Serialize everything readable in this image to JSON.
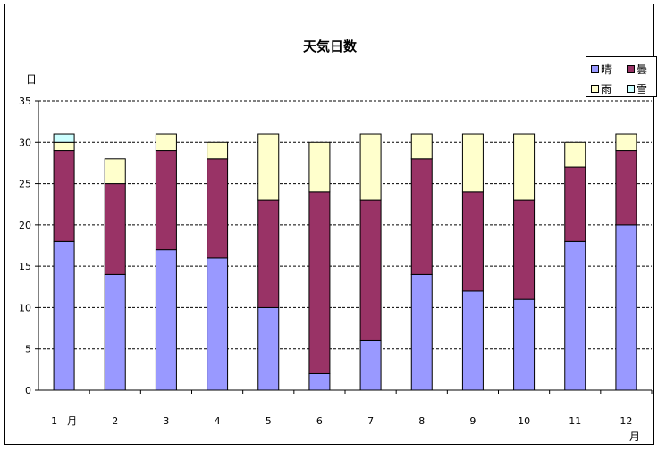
{
  "chart_data": {
    "type": "bar",
    "stacked": true,
    "title": "天気日数",
    "ylabel": "日",
    "xunit": "月",
    "ylim": [
      0,
      35
    ],
    "yticks": [
      0,
      5,
      10,
      15,
      20,
      25,
      30,
      35
    ],
    "grid": "horizontal-dashed",
    "legend_position": "top-right",
    "categories": [
      "1　月",
      "2",
      "3",
      "4",
      "5",
      "6",
      "7",
      "8",
      "9",
      "10",
      "11",
      "12"
    ],
    "series": [
      {
        "name": "晴",
        "color": "#9999ff",
        "values": [
          18,
          14,
          17,
          16,
          10,
          2,
          6,
          14,
          12,
          11,
          18,
          20
        ]
      },
      {
        "name": "曇",
        "color": "#993366",
        "values": [
          11,
          11,
          12,
          12,
          13,
          22,
          17,
          14,
          12,
          12,
          9,
          9
        ]
      },
      {
        "name": "雨",
        "color": "#ffffcc",
        "values": [
          1,
          3,
          2,
          2,
          8,
          6,
          8,
          3,
          7,
          8,
          3,
          2
        ]
      },
      {
        "name": "雪",
        "color": "#ccffff",
        "values": [
          1,
          0,
          0,
          0,
          0,
          0,
          0,
          0,
          0,
          0,
          0,
          0
        ]
      }
    ]
  }
}
